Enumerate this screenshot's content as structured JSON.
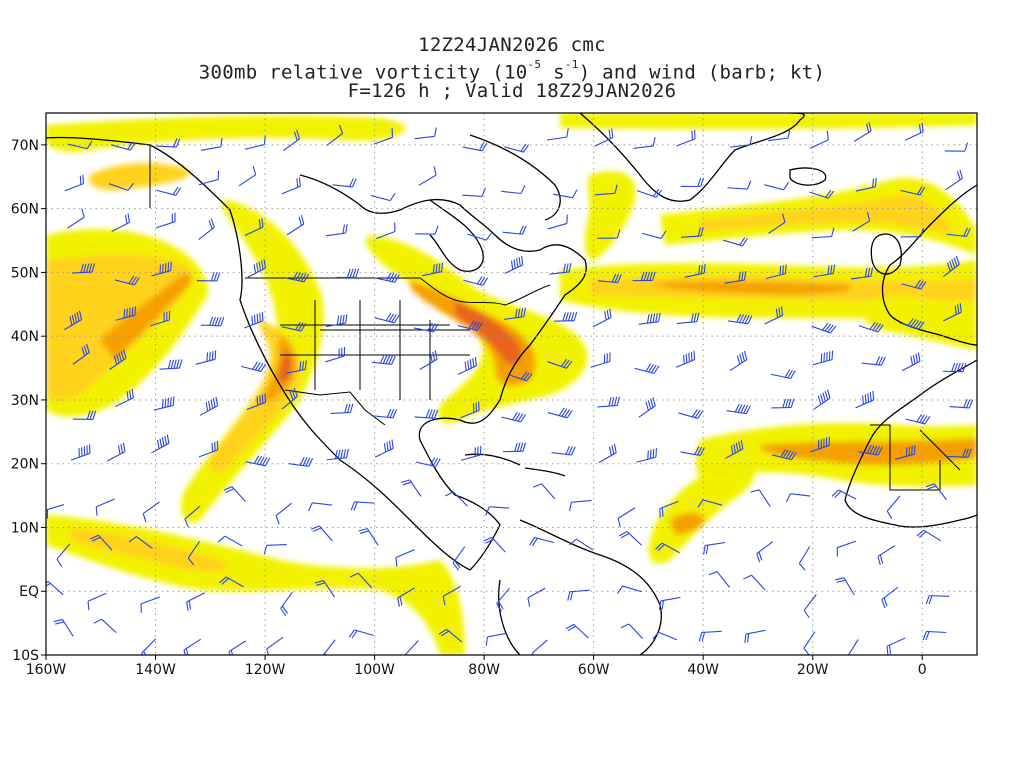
{
  "title": {
    "line1": "12Z24JAN2026 cmc",
    "line2_prefix": "300mb relative vorticity (10",
    "line2_exp1": "-5",
    "line2_mid": " s",
    "line2_exp2": "-1",
    "line2_suffix": ") and wind (barb; kt)",
    "line3": "F=126 h ; Valid 18Z29JAN2026"
  },
  "map": {
    "lon_range": [
      -160,
      10
    ],
    "lat_range": [
      -10,
      75
    ],
    "lat_ticks": [
      {
        "value": 70,
        "label": "70N"
      },
      {
        "value": 60,
        "label": "60N"
      },
      {
        "value": 50,
        "label": "50N"
      },
      {
        "value": 40,
        "label": "40N"
      },
      {
        "value": 30,
        "label": "30N"
      },
      {
        "value": 20,
        "label": "20N"
      },
      {
        "value": 10,
        "label": "10N"
      },
      {
        "value": 0,
        "label": "EQ"
      },
      {
        "value": -10,
        "label": "10S"
      }
    ],
    "lon_ticks": [
      {
        "value": -160,
        "label": "160W"
      },
      {
        "value": -140,
        "label": "140W"
      },
      {
        "value": -120,
        "label": "120W"
      },
      {
        "value": -100,
        "label": "100W"
      },
      {
        "value": -80,
        "label": "80W"
      },
      {
        "value": -60,
        "label": "60W"
      },
      {
        "value": -40,
        "label": "40W"
      },
      {
        "value": -20,
        "label": "20W"
      },
      {
        "value": 0,
        "label": "0"
      }
    ],
    "colors": {
      "shade_light": "#f2f200",
      "shade_yellow": "#ffd21e",
      "shade_orange": "#f5a000",
      "shade_dark": "#e8641e",
      "coast": "#000000",
      "barb": "#2846e6",
      "grid": "#9a9a9a"
    },
    "barb_icon": "wind-barb-icon"
  }
}
